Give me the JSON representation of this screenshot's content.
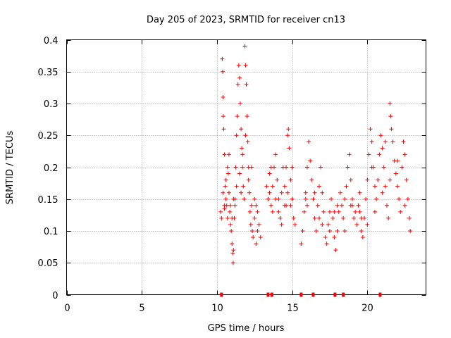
{
  "chart_data": {
    "type": "scatter",
    "title": "Day 205 of 2023, SRMTID for receiver cn13",
    "xlabel": "GPS time / hours",
    "ylabel": "SRMTID / TECUs",
    "xlim": [
      0,
      23.9
    ],
    "ylim": [
      0,
      0.4
    ],
    "xticks": [
      0,
      5,
      10,
      15,
      20
    ],
    "xtick_labels": [
      "0",
      "5",
      "10",
      "15",
      "20"
    ],
    "yticks": [
      0,
      0.05,
      0.1,
      0.15,
      0.2,
      0.25,
      0.3,
      0.35,
      0.4
    ],
    "ytick_labels": [
      "0",
      "0.05",
      "0.1",
      "0.15",
      "0.2",
      "0.25",
      "0.3",
      "0.35",
      "0.4"
    ],
    "grid": true,
    "marker": "+",
    "color": "#ff0000",
    "series": [
      {
        "name": "SRMTID",
        "points": [
          [
            10.25,
            0.13
          ],
          [
            10.3,
            0.12
          ],
          [
            10.35,
            0.37
          ],
          [
            10.38,
            0.35
          ],
          [
            10.4,
            0.31
          ],
          [
            10.42,
            0.28
          ],
          [
            10.45,
            0.26
          ],
          [
            10.5,
            0.22
          ],
          [
            10.55,
            0.17
          ],
          [
            10.6,
            0.15
          ],
          [
            10.65,
            0.14
          ],
          [
            10.7,
            0.12
          ],
          [
            10.75,
            0.19
          ],
          [
            10.8,
            0.16
          ],
          [
            10.85,
            0.13
          ],
          [
            10.9,
            0.11
          ],
          [
            10.95,
            0.1
          ],
          [
            11.0,
            0.08
          ],
          [
            11.05,
            0.065
          ],
          [
            11.08,
            0.05
          ],
          [
            11.1,
            0.07
          ],
          [
            11.15,
            0.12
          ],
          [
            11.2,
            0.15
          ],
          [
            11.25,
            0.2
          ],
          [
            11.3,
            0.25
          ],
          [
            11.35,
            0.28
          ],
          [
            11.4,
            0.33
          ],
          [
            11.45,
            0.36
          ],
          [
            11.5,
            0.34
          ],
          [
            11.55,
            0.3
          ],
          [
            11.6,
            0.26
          ],
          [
            11.65,
            0.23
          ],
          [
            11.7,
            0.2
          ],
          [
            11.75,
            0.17
          ],
          [
            11.8,
            0.15
          ],
          [
            11.85,
            0.39
          ],
          [
            11.9,
            0.36
          ],
          [
            11.95,
            0.33
          ],
          [
            12.0,
            0.28
          ],
          [
            12.05,
            0.24
          ],
          [
            12.1,
            0.2
          ],
          [
            12.15,
            0.16
          ],
          [
            12.2,
            0.13
          ],
          [
            12.25,
            0.11
          ],
          [
            12.3,
            0.14
          ],
          [
            12.35,
            0.1
          ],
          [
            12.4,
            0.09
          ],
          [
            12.5,
            0.12
          ],
          [
            12.6,
            0.08
          ],
          [
            12.7,
            0.1
          ],
          [
            10.4,
            0.16
          ],
          [
            10.5,
            0.14
          ],
          [
            10.6,
            0.18
          ],
          [
            10.7,
            0.2
          ],
          [
            10.8,
            0.22
          ],
          [
            10.9,
            0.14
          ],
          [
            11.0,
            0.12
          ],
          [
            11.1,
            0.15
          ],
          [
            11.3,
            0.17
          ],
          [
            11.5,
            0.19
          ],
          [
            11.7,
            0.22
          ],
          [
            11.9,
            0.25
          ],
          [
            12.1,
            0.18
          ],
          [
            12.3,
            0.2
          ],
          [
            12.5,
            0.15
          ],
          [
            12.7,
            0.13
          ],
          [
            12.8,
            0.11
          ],
          [
            12.9,
            0.09
          ],
          [
            10.5,
            0.135
          ],
          [
            11.2,
            0.14
          ],
          [
            13.3,
            0.17
          ],
          [
            13.4,
            0.15
          ],
          [
            13.5,
            0.16
          ],
          [
            13.6,
            0.14
          ],
          [
            13.7,
            0.13
          ],
          [
            13.8,
            0.2
          ],
          [
            13.9,
            0.22
          ],
          [
            14.0,
            0.18
          ],
          [
            14.1,
            0.15
          ],
          [
            14.2,
            0.12
          ],
          [
            14.3,
            0.16
          ],
          [
            14.4,
            0.2
          ],
          [
            14.5,
            0.17
          ],
          [
            14.6,
            0.14
          ],
          [
            14.7,
            0.25
          ],
          [
            14.75,
            0.26
          ],
          [
            14.8,
            0.23
          ],
          [
            14.9,
            0.18
          ],
          [
            15.0,
            0.15
          ],
          [
            15.1,
            0.12
          ],
          [
            15.2,
            0.11
          ],
          [
            13.5,
            0.19
          ],
          [
            13.7,
            0.17
          ],
          [
            13.9,
            0.15
          ],
          [
            14.1,
            0.13
          ],
          [
            14.3,
            0.11
          ],
          [
            14.5,
            0.14
          ],
          [
            14.7,
            0.16
          ],
          [
            14.9,
            0.14
          ],
          [
            15.0,
            0.2
          ],
          [
            15.6,
            0.08
          ],
          [
            15.7,
            0.1
          ],
          [
            15.8,
            0.13
          ],
          [
            15.9,
            0.16
          ],
          [
            16.0,
            0.2
          ],
          [
            16.1,
            0.24
          ],
          [
            16.2,
            0.21
          ],
          [
            16.3,
            0.18
          ],
          [
            16.4,
            0.15
          ],
          [
            16.5,
            0.12
          ],
          [
            16.6,
            0.1
          ],
          [
            16.7,
            0.14
          ],
          [
            16.8,
            0.17
          ],
          [
            16.9,
            0.2
          ],
          [
            17.0,
            0.16
          ],
          [
            17.1,
            0.13
          ],
          [
            17.2,
            0.09
          ],
          [
            17.3,
            0.08
          ],
          [
            17.4,
            0.11
          ],
          [
            17.5,
            0.13
          ],
          [
            17.6,
            0.15
          ],
          [
            17.7,
            0.12
          ],
          [
            17.8,
            0.09
          ],
          [
            17.9,
            0.07
          ],
          [
            18.0,
            0.1
          ],
          [
            18.1,
            0.13
          ],
          [
            18.2,
            0.16
          ],
          [
            18.3,
            0.14
          ],
          [
            18.4,
            0.12
          ],
          [
            18.5,
            0.15
          ],
          [
            18.6,
            0.17
          ],
          [
            18.7,
            0.2
          ],
          [
            18.8,
            0.22
          ],
          [
            18.9,
            0.18
          ],
          [
            19.0,
            0.14
          ],
          [
            19.1,
            0.12
          ],
          [
            19.2,
            0.13
          ],
          [
            19.3,
            0.11
          ],
          [
            19.4,
            0.14
          ],
          [
            19.5,
            0.16
          ],
          [
            19.6,
            0.1
          ],
          [
            19.7,
            0.09
          ],
          [
            19.8,
            0.12
          ],
          [
            19.9,
            0.15
          ],
          [
            20.0,
            0.18
          ],
          [
            20.1,
            0.22
          ],
          [
            20.2,
            0.26
          ],
          [
            20.3,
            0.24
          ],
          [
            20.4,
            0.2
          ],
          [
            20.5,
            0.17
          ],
          [
            20.6,
            0.15
          ],
          [
            20.7,
            0.18
          ],
          [
            20.8,
            0.22
          ],
          [
            20.9,
            0.25
          ],
          [
            21.0,
            0.23
          ],
          [
            21.1,
            0.2
          ],
          [
            21.2,
            0.17
          ],
          [
            21.3,
            0.14
          ],
          [
            21.4,
            0.12
          ],
          [
            21.5,
            0.3
          ],
          [
            21.55,
            0.28
          ],
          [
            21.6,
            0.26
          ],
          [
            21.7,
            0.24
          ],
          [
            21.8,
            0.21
          ],
          [
            21.9,
            0.19
          ],
          [
            22.0,
            0.17
          ],
          [
            22.1,
            0.15
          ],
          [
            22.2,
            0.13
          ],
          [
            22.3,
            0.2
          ],
          [
            22.4,
            0.24
          ],
          [
            22.5,
            0.22
          ],
          [
            22.6,
            0.18
          ],
          [
            22.7,
            0.15
          ],
          [
            22.8,
            0.12
          ],
          [
            22.85,
            0.1
          ],
          [
            16.0,
            0.14
          ],
          [
            16.5,
            0.16
          ],
          [
            17.0,
            0.11
          ],
          [
            17.5,
            0.1
          ],
          [
            18.0,
            0.14
          ],
          [
            18.5,
            0.1
          ],
          [
            19.0,
            0.15
          ],
          [
            19.5,
            0.13
          ],
          [
            20.0,
            0.11
          ],
          [
            20.5,
            0.13
          ],
          [
            21.0,
            0.16
          ],
          [
            21.5,
            0.18
          ],
          [
            22.0,
            0.21
          ],
          [
            22.5,
            0.14
          ],
          [
            21.2,
            0.24
          ],
          [
            20.3,
            0.2
          ],
          [
            19.6,
            0.12
          ],
          [
            18.9,
            0.14
          ],
          [
            17.8,
            0.13
          ],
          [
            16.8,
            0.12
          ],
          [
            15.9,
            0.15
          ],
          [
            14.6,
            0.2
          ],
          [
            13.6,
            0.2
          ],
          [
            12.6,
            0.14
          ],
          [
            11.6,
            0.16
          ]
        ]
      }
    ],
    "zero_markers_x": [
      10.3,
      13.4,
      13.65,
      15.6,
      16.4,
      17.85,
      18.4,
      20.85
    ]
  }
}
